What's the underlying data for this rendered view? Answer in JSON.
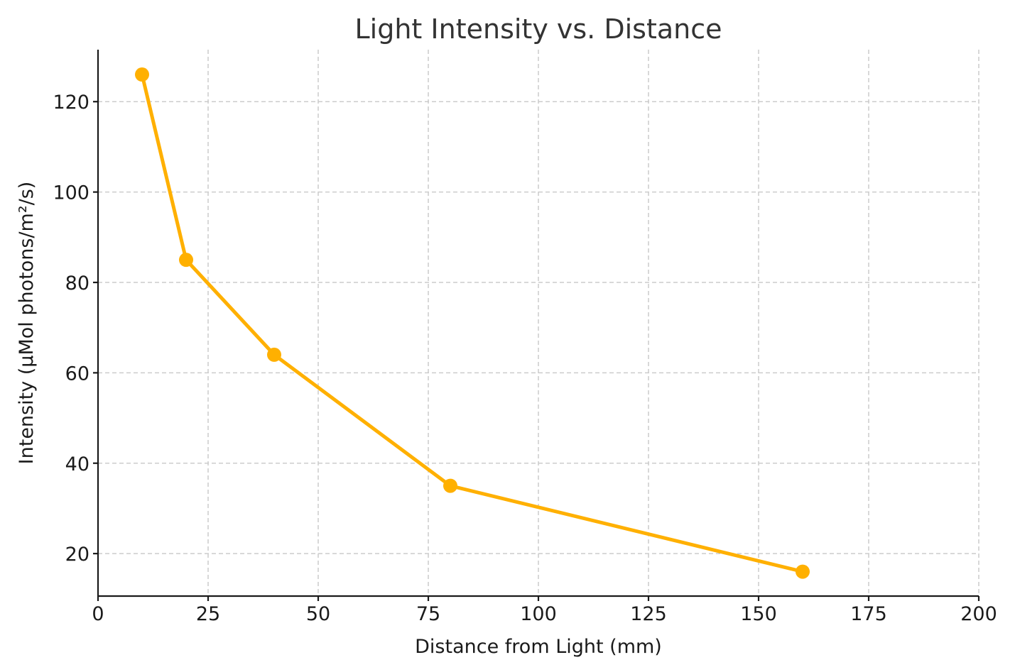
{
  "chart_data": {
    "type": "line",
    "title": "Light Intensity vs. Distance",
    "xlabel": "Distance from Light (mm)",
    "ylabel": "Intensity (µMol photons/m²/s)",
    "xlim": [
      0,
      200
    ],
    "ylim": [
      10.6,
      131.5
    ],
    "xticks": [
      0,
      25,
      50,
      75,
      100,
      125,
      150,
      175,
      200
    ],
    "yticks": [
      20,
      40,
      60,
      80,
      100,
      120
    ],
    "grid": true,
    "legend": null,
    "series": [
      {
        "name": "Intensity",
        "color": "#FFB000",
        "marker": "circle",
        "x": [
          10,
          20,
          40,
          80,
          160
        ],
        "y": [
          126,
          85,
          64,
          35,
          16
        ]
      }
    ]
  }
}
